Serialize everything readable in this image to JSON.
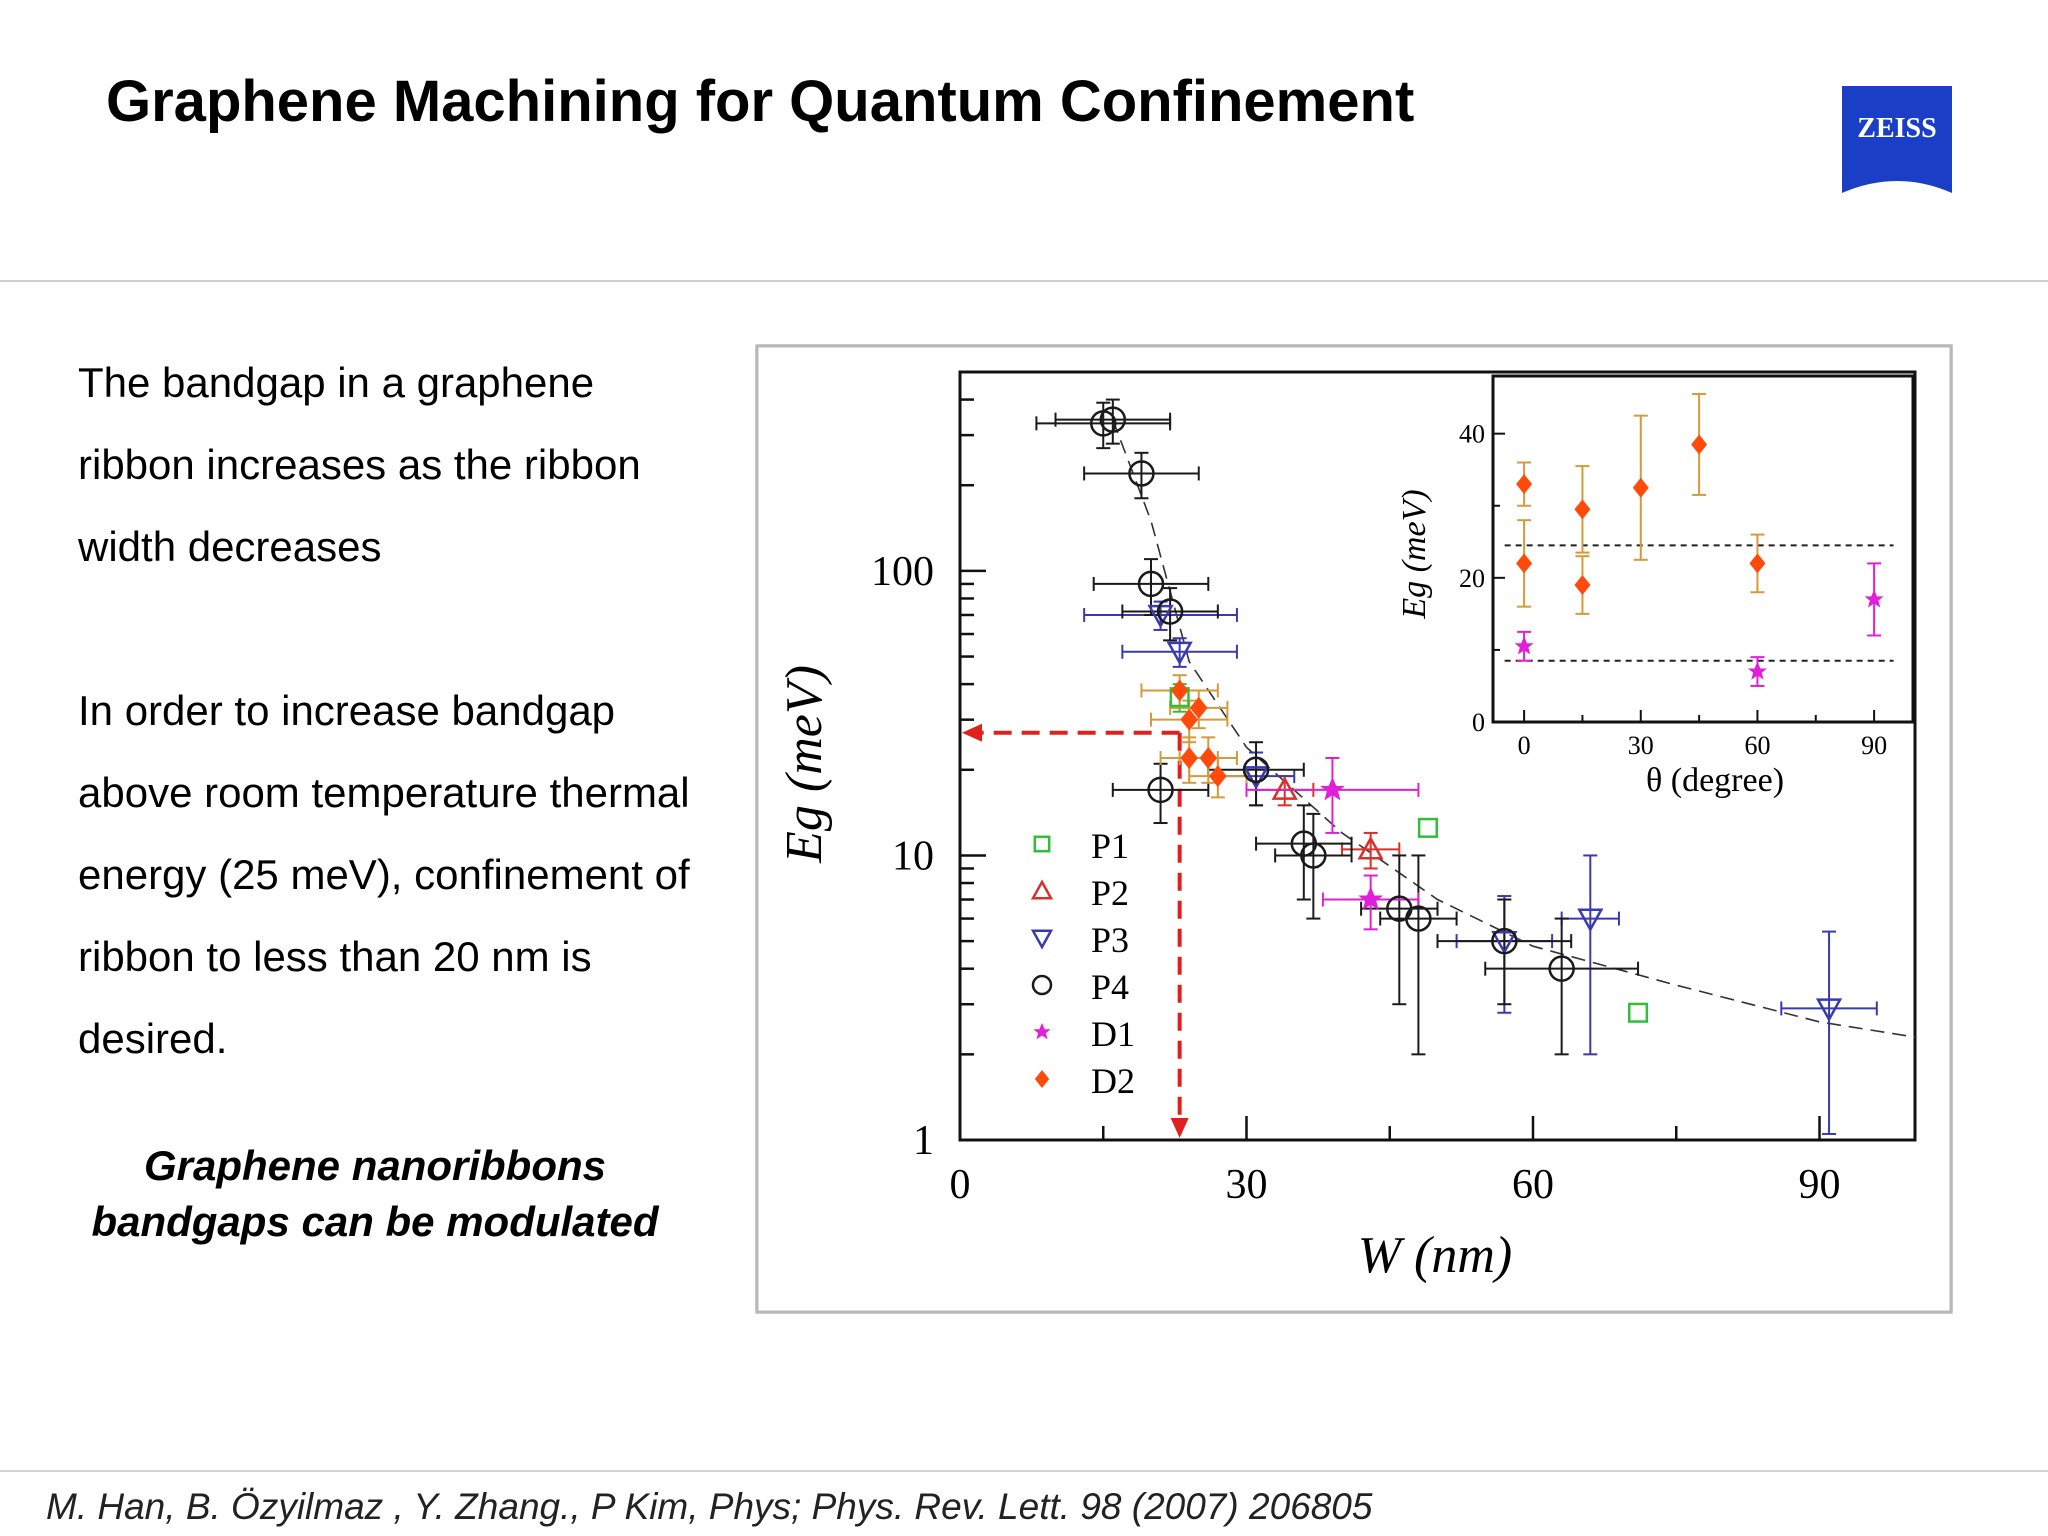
{
  "slide": {
    "title": "Graphene Machining for Quantum Confinement",
    "paragraph_1": "The bandgap in a graphene ribbon increases as the ribbon width decreases",
    "paragraph_2": "In order to increase bandgap above room temperature thermal energy (25 meV), confinement of ribbon to less than 20 nm is desired.",
    "emphasis": "Graphene nanoribbons bandgaps can be modulated",
    "citation": "M. Han, B. Özyilmaz , Y. Zhang., P Kim, Phys; Phys. Rev. Lett. 98 (2007) 206805"
  },
  "logo": {
    "text": "ZEISS",
    "color": "#1a3fc6"
  },
  "colors": {
    "P1": "#2fbf3b",
    "P2": "#d9302c",
    "P3": "#3a3ab0",
    "P4": "#1a1a1a",
    "D1": "#e020d8",
    "D2": "#ff4a0a",
    "D2_errorbar": "#d59a3a",
    "guide": "#e0201c"
  },
  "chart_data": [
    {
      "type": "scatter",
      "xlabel": "W (nm)",
      "ylabel": "Eg (meV)",
      "xlim": [
        0,
        100
      ],
      "ylim": [
        1,
        500
      ],
      "yscale": "log",
      "xticks": [
        "0",
        "30",
        "60",
        "90"
      ],
      "yticks": [
        "1",
        "10",
        "100"
      ],
      "legend": [
        "P1",
        "P2",
        "P3",
        "P4",
        "D1",
        "D2"
      ],
      "legend_position": "lower-left",
      "fit_curve": [
        [
          16,
          340
        ],
        [
          20,
          150
        ],
        [
          24,
          48
        ],
        [
          30,
          24
        ],
        [
          40,
          12
        ],
        [
          50,
          7
        ],
        [
          60,
          4.8
        ],
        [
          75,
          3.5
        ],
        [
          90,
          2.6
        ],
        [
          100,
          2.3
        ]
      ],
      "guide_lines": {
        "x": 23,
        "y": 27
      },
      "series": [
        {
          "name": "P1",
          "points": [
            [
              23,
              36,
              0,
              4
            ],
            [
              49,
              12.5,
              0,
              0
            ],
            [
              71,
              2.8,
              0,
              0
            ]
          ]
        },
        {
          "name": "P2",
          "points": [
            [
              34,
              17,
              3,
              2
            ],
            [
              43,
              10.5,
              3,
              1.5
            ]
          ]
        },
        {
          "name": "P3",
          "points": [
            [
              21,
              70,
              8,
              8
            ],
            [
              23,
              52,
              6,
              6
            ],
            [
              31,
              19,
              4,
              4
            ],
            [
              57,
              5,
              5,
              2.2
            ],
            [
              66,
              6,
              3,
              4
            ],
            [
              91,
              2.9,
              5,
              2.5
            ]
          ]
        },
        {
          "name": "P4",
          "points": [
            [
              15,
              330,
              7,
              60
            ],
            [
              16,
              340,
              6,
              60
            ],
            [
              19,
              220,
              6,
              40
            ],
            [
              20,
              90,
              6,
              20
            ],
            [
              22,
              72,
              5,
              15
            ],
            [
              21,
              17,
              5,
              4
            ],
            [
              31,
              20,
              5,
              5
            ],
            [
              36,
              11,
              5,
              4
            ],
            [
              37,
              10,
              4,
              4
            ],
            [
              46,
              6.5,
              4,
              3.5
            ],
            [
              48,
              6,
              4,
              4
            ],
            [
              57,
              5,
              7,
              2
            ],
            [
              63,
              4,
              8,
              2
            ]
          ]
        },
        {
          "name": "D1",
          "points": [
            [
              39,
              17,
              9,
              5
            ],
            [
              43,
              7,
              5,
              1.5
            ]
          ]
        },
        {
          "name": "D2",
          "points": [
            [
              23,
              38,
              4,
              5
            ],
            [
              24,
              30,
              4,
              5
            ],
            [
              25,
              33,
              3,
              5
            ],
            [
              24,
              22,
              3,
              4
            ],
            [
              26,
              22,
              3,
              4
            ],
            [
              27,
              19,
              3,
              3
            ]
          ]
        }
      ]
    },
    {
      "type": "scatter",
      "xlabel": "θ (degree)",
      "ylabel": "Eg (meV)",
      "xlim": [
        -8,
        100
      ],
      "ylim": [
        0,
        48
      ],
      "xticks": [
        "0",
        "30",
        "60",
        "90"
      ],
      "yticks": [
        "0",
        "20",
        "40"
      ],
      "hlines": [
        24.5,
        8.5
      ],
      "series": [
        {
          "name": "D2",
          "points": [
            [
              0,
              33,
              3
            ],
            [
              0,
              22,
              6
            ],
            [
              15,
              29.5,
              6
            ],
            [
              15,
              19,
              4
            ],
            [
              30,
              32.5,
              10
            ],
            [
              45,
              38.5,
              7
            ],
            [
              60,
              22,
              4
            ]
          ]
        },
        {
          "name": "D1",
          "points": [
            [
              0,
              10.5,
              2
            ],
            [
              60,
              7,
              2
            ],
            [
              90,
              17,
              5
            ]
          ]
        }
      ]
    }
  ]
}
